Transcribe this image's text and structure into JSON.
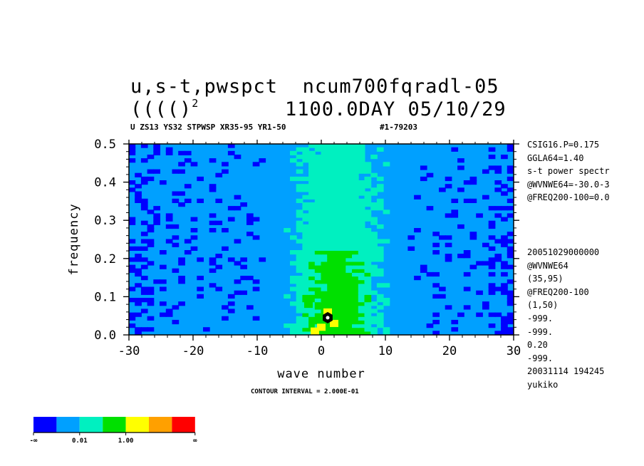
{
  "header": {
    "title_line1": "u,s-t,pwspct  ncum700fqradl-05",
    "title_line2_left": "(((()",
    "title_line2_sup": "2",
    "title_line2_right": "1100.0DAY 05/10/29",
    "subtitle": "U ZS13 YS32 STPWSP XR35-95 YR1-50",
    "subtitle_id": "#1-79203"
  },
  "info_top": [
    "CSIG16.P=0.175",
    "GGLA64=1.40",
    "s-t power spectr",
    "@WVNWE64=-30.0-3",
    "@FREQ200-100=0.0"
  ],
  "info_bottom": [
    "20051029000000",
    "@WVNWE64",
    "(35,95)",
    "@FREQ200-100",
    "(1,50)",
    "-999.",
    "-999.",
    "0.20",
    "-999.",
    "20031114 194245",
    "yukiko"
  ],
  "footer": {
    "contour_interval": "CONTOUR INTERVAL = 2.000E-01"
  },
  "colorbar": {
    "colors": [
      "#0000ff",
      "#00a0ff",
      "#00f0c0",
      "#00e000",
      "#ffff00",
      "#ffa000",
      "#ff0000"
    ],
    "labels": [
      "-∞",
      "0.01",
      "1.00",
      "∞"
    ]
  },
  "chart_data": {
    "type": "heatmap",
    "xlabel": "wave number",
    "ylabel": "frequency",
    "xlim": [
      -30,
      30
    ],
    "ylim": [
      0.0,
      0.5
    ],
    "xticks": [
      -30,
      -20,
      -10,
      0,
      10,
      20,
      30
    ],
    "xtick_labels": [
      "-30",
      "-20",
      "-10",
      "0",
      "10",
      "20",
      "30"
    ],
    "yticks": [
      0.0,
      0.1,
      0.2,
      0.3,
      0.4,
      0.5
    ],
    "ytick_labels": [
      "0.0",
      "0.1",
      "0.2",
      "0.3",
      "0.4",
      "0.5"
    ],
    "color_levels": [
      "< 0.01",
      "0.01-1.00",
      "higher"
    ],
    "features": [
      {
        "description": "Broad band of elevated power centered near wave number 0 to 5 extending over all frequencies"
      },
      {
        "description": "Peak maximum near wave number 1, frequency 0.04"
      }
    ],
    "peak": {
      "x": 1,
      "y": 0.045
    }
  }
}
